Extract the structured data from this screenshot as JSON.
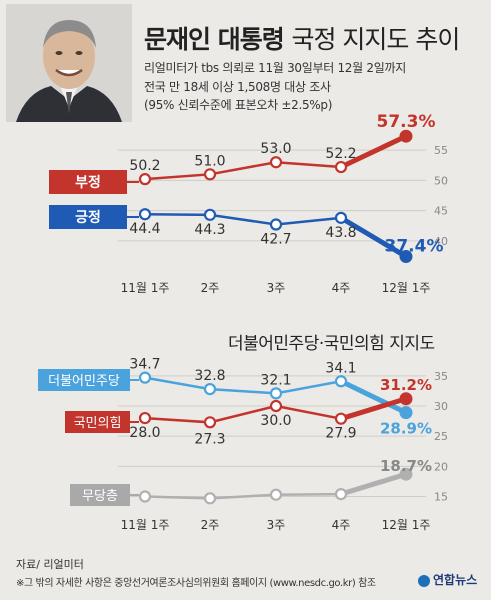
{
  "title_bold": "문재인 대통령",
  "title_rest": "국정 지지도 추이",
  "subtitle_lines": [
    "리얼미터가 tbs 의뢰로 11월 30일부터 12월 2일까지",
    "전국 만 18세 이상 1,508명 대상 조사",
    "(95% 신뢰수준에 표본오차 ±2.5%p)"
  ],
  "panel2_title": "더불어민주당·국민의힘 지지도",
  "source": "자료/ 리얼미터",
  "note": "※그 밖의 자세한 사항은 중앙선거여론조사심의위원회 홈페이지 (www.nesdc.go.kr) 참조",
  "logo": "연합뉴스",
  "colors": {
    "red": "#c3342c",
    "blue": "#1f5bb5",
    "light_blue": "#4aa3dc",
    "gray": "#b0b0b0",
    "grid": "#c9c9c9"
  },
  "chart_data": [
    {
      "type": "line",
      "categories": [
        "11월 1주",
        "2주",
        "3주",
        "4주",
        "12월 1주"
      ],
      "series": [
        {
          "name": "부정",
          "values": [
            50.2,
            51.0,
            53.0,
            52.2,
            57.3
          ],
          "labels": [
            "50.2",
            "51.0",
            "53.0",
            "52.2",
            "57.3%"
          ],
          "color": "#c3342c"
        },
        {
          "name": "긍정",
          "values": [
            44.4,
            44.3,
            42.7,
            43.8,
            37.4
          ],
          "labels": [
            "44.4",
            "44.3",
            "42.7",
            "43.8",
            "37.4%"
          ],
          "color": "#1f5bb5"
        }
      ],
      "yticks": [
        40,
        45,
        50,
        55
      ],
      "ylim": [
        36.5,
        57.5
      ]
    },
    {
      "type": "line",
      "categories": [
        "11월 1주",
        "2주",
        "3주",
        "4주",
        "12월 1주"
      ],
      "series": [
        {
          "name": "더불어민주당",
          "values": [
            34.7,
            32.8,
            32.1,
            34.1,
            28.9
          ],
          "labels": [
            "34.7",
            "32.8",
            "32.1",
            "34.1",
            "28.9%"
          ],
          "color": "#4aa3dc"
        },
        {
          "name": "국민의힘",
          "values": [
            28.0,
            27.3,
            30.0,
            27.9,
            31.2
          ],
          "labels": [
            "28.0",
            "27.3",
            "30.0",
            "27.9",
            "31.2%"
          ],
          "color": "#c3342c"
        },
        {
          "name": "무당층",
          "values": [
            15.0,
            14.7,
            15.3,
            15.4,
            18.7
          ],
          "labels": [
            "",
            "",
            "",
            "",
            "18.7%"
          ],
          "color": "#b0b0b0"
        }
      ],
      "yticks": [
        15,
        20,
        25,
        30,
        35
      ],
      "ylim": [
        12.6,
        36.3
      ]
    }
  ]
}
